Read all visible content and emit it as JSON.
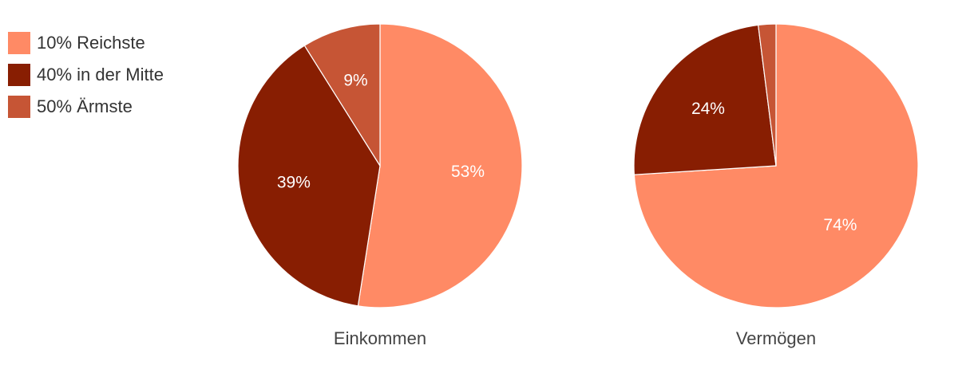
{
  "colors": [
    "#ff8a65",
    "#881e02",
    "#c65535"
  ],
  "legend": [
    {
      "label": "10% Reichste",
      "color": "#ff8a65"
    },
    {
      "label": "40% in der Mitte",
      "color": "#881e02"
    },
    {
      "label": "50% Ärmste",
      "color": "#c65535"
    }
  ],
  "chart_data": [
    {
      "type": "pie",
      "title": "Einkommen",
      "categories": [
        "10% Reichste",
        "40% in der Mitte",
        "50% Ärmste"
      ],
      "values": [
        53,
        39,
        9
      ],
      "labels": [
        "53%",
        "39%",
        "9%"
      ]
    },
    {
      "type": "pie",
      "title": "Vermögen",
      "categories": [
        "10% Reichste",
        "40% in der Mitte",
        "50% Ärmste"
      ],
      "values": [
        74,
        24,
        2
      ],
      "labels": [
        "74%",
        "24%",
        ""
      ]
    }
  ]
}
